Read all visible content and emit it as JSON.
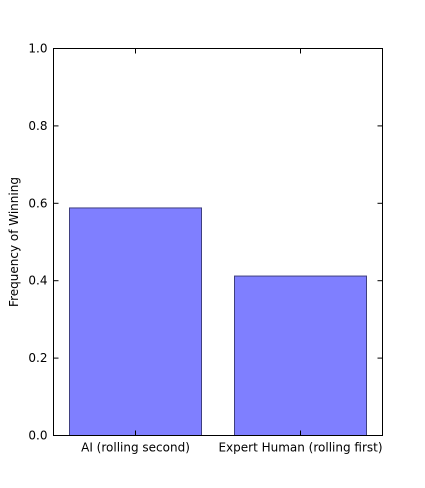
{
  "chart_data": {
    "type": "bar",
    "categories": [
      "AI (rolling second)",
      "Expert Human (rolling first)"
    ],
    "values": [
      0.588,
      0.412
    ],
    "title": "",
    "xlabel": "",
    "ylabel": "Frequency of Winning",
    "ylim": [
      0.0,
      1.0
    ],
    "yticks": [
      "0.0",
      "0.2",
      "0.4",
      "0.6",
      "0.8",
      "1.0"
    ],
    "grid": false,
    "bar_color": "#7f7fff",
    "bar_edge_color": "#3f3f7f"
  }
}
